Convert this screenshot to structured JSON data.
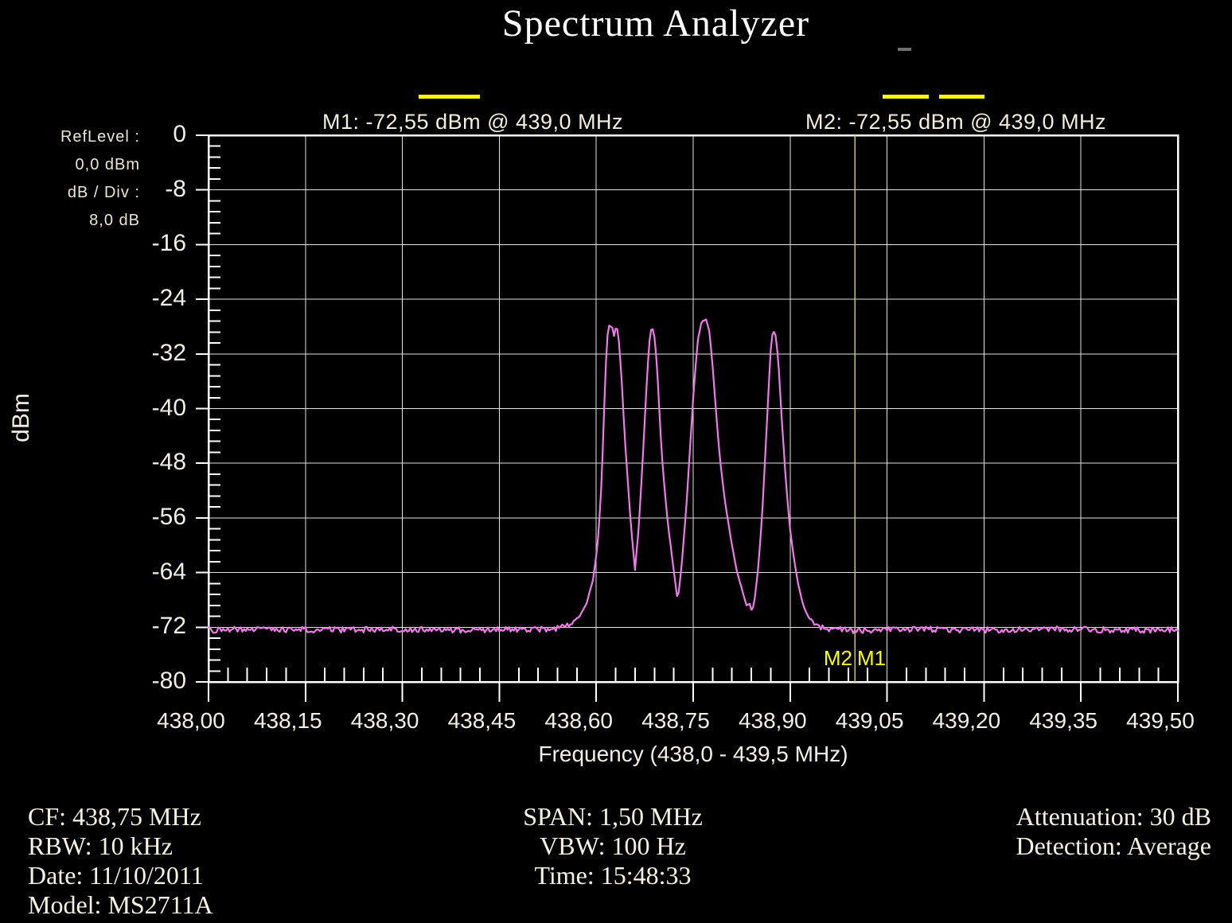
{
  "title": {
    "text": "Spectrum Analyzer"
  },
  "markers": {
    "m1_readout": "M1:  -72,55 dBm @ 439,0 MHz",
    "m2_readout": "M2:  -72,55 dBm @ 439,0 MHz",
    "m1_flag": "M1",
    "m2_flag": "M2",
    "marker_color": "#ffff00",
    "marker_line_color": "#c9c930"
  },
  "left_panel": {
    "ref_level_label": "RefLevel :",
    "ref_level_value": "0,0  dBm",
    "db_div_label": "dB / Div :",
    "db_div_value": "8,0 dB"
  },
  "y_axis": {
    "title": "dBm",
    "ticks": [
      "0",
      "-8",
      "-16",
      "-24",
      "-32",
      "-40",
      "-48",
      "-56",
      "-64",
      "-72",
      "-80"
    ]
  },
  "x_axis": {
    "title": "Frequency (438,0 - 439,5 MHz)",
    "ticks": [
      "438,00",
      "438,15",
      "438,30",
      "438,45",
      "438,60",
      "438,75",
      "438,90",
      "439,05",
      "439,20",
      "439,35",
      "439,50"
    ]
  },
  "footer": {
    "left": [
      "CF: 438,75 MHz",
      "RBW: 10 kHz",
      "Date: 11/10/2011",
      "Model: MS2711A"
    ],
    "center": [
      "SPAN: 1,50 MHz",
      "VBW: 100 Hz",
      "Time: 15:48:33"
    ],
    "right": [
      "Attenuation: 30 dB",
      "Detection: Average"
    ]
  },
  "chart_data": {
    "type": "line",
    "title": "Spectrum Analyzer",
    "xlabel": "Frequency (438,0 - 439,5 MHz)",
    "ylabel": "dBm",
    "xlim": [
      438.0,
      439.5
    ],
    "ylim": [
      -80,
      0
    ],
    "x_major_step_mhz": 0.15,
    "y_major_step_db": 8,
    "minor_divisions_per_major": 5,
    "grid": true,
    "background": "#000000",
    "grid_color": "#e2e2e2",
    "trace_color": "#f07be8",
    "noise_floor_dbm": -72.5,
    "ref_level_dbm": 0.0,
    "db_per_div": 8.0,
    "markers": [
      {
        "name": "M1",
        "freq_mhz": 439.0,
        "level_dbm": -72.55
      },
      {
        "name": "M2",
        "freq_mhz": 439.0,
        "level_dbm": -72.55
      }
    ],
    "peaks": [
      {
        "freq_mhz": 438.62,
        "level_dbm": -27.9
      },
      {
        "freq_mhz": 438.69,
        "level_dbm": -28.1
      },
      {
        "freq_mhz": 438.77,
        "level_dbm": -26.9
      },
      {
        "freq_mhz": 438.87,
        "level_dbm": -28.5
      }
    ],
    "trace_points": [
      [
        438.0,
        -72.4
      ],
      [
        438.1,
        -72.3
      ],
      [
        438.2,
        -72.4
      ],
      [
        438.3,
        -72.3
      ],
      [
        438.4,
        -72.4
      ],
      [
        438.5,
        -72.3
      ],
      [
        438.54,
        -72.2
      ],
      [
        438.56,
        -71.6
      ],
      [
        438.575,
        -70.3
      ],
      [
        438.585,
        -68.5
      ],
      [
        438.595,
        -65.0
      ],
      [
        438.602,
        -60.0
      ],
      [
        438.607,
        -53.0
      ],
      [
        438.611,
        -44.0
      ],
      [
        438.614,
        -35.0
      ],
      [
        438.617,
        -29.5
      ],
      [
        438.62,
        -27.9
      ],
      [
        438.625,
        -28.2
      ],
      [
        438.627,
        -29.6
      ],
      [
        438.63,
        -28.3
      ],
      [
        438.633,
        -28.4
      ],
      [
        438.636,
        -31.0
      ],
      [
        438.64,
        -37.0
      ],
      [
        438.644,
        -44.0
      ],
      [
        438.649,
        -51.0
      ],
      [
        438.654,
        -57.5
      ],
      [
        438.66,
        -63.6
      ],
      [
        438.666,
        -57.0
      ],
      [
        438.671,
        -49.0
      ],
      [
        438.676,
        -40.0
      ],
      [
        438.681,
        -31.5
      ],
      [
        438.684,
        -28.6
      ],
      [
        438.687,
        -28.1
      ],
      [
        438.691,
        -30.0
      ],
      [
        438.695,
        -35.5
      ],
      [
        438.699,
        -43.0
      ],
      [
        438.704,
        -50.0
      ],
      [
        438.711,
        -57.0
      ],
      [
        438.719,
        -63.0
      ],
      [
        438.726,
        -68.2
      ],
      [
        438.732,
        -63.0
      ],
      [
        438.739,
        -55.0
      ],
      [
        438.745,
        -46.0
      ],
      [
        438.751,
        -37.0
      ],
      [
        438.757,
        -30.0
      ],
      [
        438.763,
        -27.3
      ],
      [
        438.77,
        -26.9
      ],
      [
        438.775,
        -28.8
      ],
      [
        438.779,
        -32.5
      ],
      [
        438.785,
        -40.0
      ],
      [
        438.791,
        -47.0
      ],
      [
        438.799,
        -53.5
      ],
      [
        438.809,
        -59.5
      ],
      [
        438.818,
        -64.0
      ],
      [
        438.827,
        -67.0
      ],
      [
        438.833,
        -69.0
      ],
      [
        438.837,
        -68.4
      ],
      [
        438.841,
        -69.8
      ],
      [
        438.845,
        -68.0
      ],
      [
        438.851,
        -63.0
      ],
      [
        438.857,
        -55.0
      ],
      [
        438.862,
        -46.0
      ],
      [
        438.867,
        -36.5
      ],
      [
        438.871,
        -29.8
      ],
      [
        438.874,
        -28.5
      ],
      [
        438.878,
        -29.5
      ],
      [
        438.882,
        -33.5
      ],
      [
        438.887,
        -41.5
      ],
      [
        438.893,
        -50.0
      ],
      [
        438.899,
        -57.0
      ],
      [
        438.906,
        -62.0
      ],
      [
        438.913,
        -66.0
      ],
      [
        438.921,
        -69.0
      ],
      [
        438.93,
        -70.8
      ],
      [
        438.942,
        -71.8
      ],
      [
        438.955,
        -72.2
      ],
      [
        439.0,
        -72.5
      ],
      [
        439.1,
        -72.3
      ],
      [
        439.2,
        -72.4
      ],
      [
        439.3,
        -72.3
      ],
      [
        439.4,
        -72.4
      ],
      [
        439.5,
        -72.4
      ]
    ]
  }
}
